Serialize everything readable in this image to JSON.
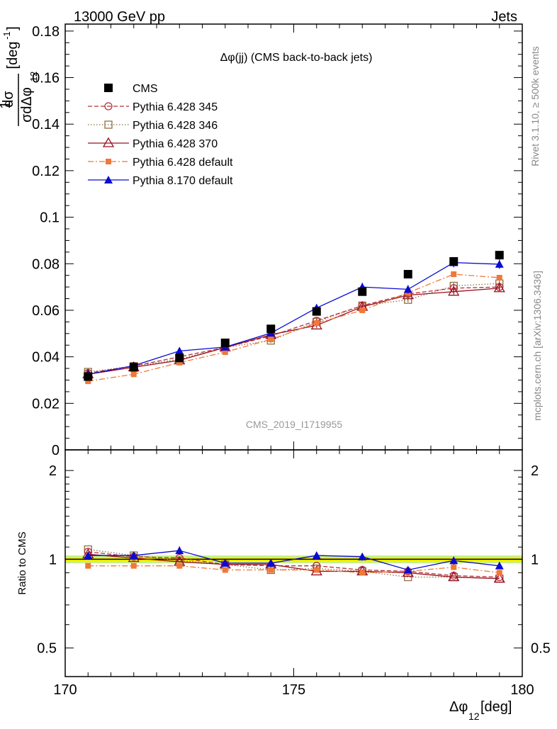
{
  "header": {
    "left": "13000 GeV pp",
    "right": "Jets"
  },
  "side_labels": {
    "rivet": "Rivet 3.1.10, ≥ 500k events",
    "mcplots": "mcplots.cern.ch [arXiv:1306.3436]"
  },
  "watermark": "CMS_2019_I1719955",
  "colors": {
    "cms": "#000000",
    "p345": "#b5303a",
    "p346": "#8e7040",
    "p370": "#9a1020",
    "pdef": "#f07838",
    "p8": "#0a0ad2",
    "band_inner": "#f2f200",
    "band_outer": "#c8f080"
  },
  "chart_data": [
    {
      "type": "scatter",
      "panel": "main",
      "title": "Δφ(jj) (CMS back-to-back jets)",
      "ylabel": {
        "prefix": "1",
        "num": "dσ",
        "den": "σdΔφ",
        "den_sub": "12",
        "unit": "[deg",
        "unit_sup": "-1",
        "unit_close": "]"
      },
      "xlim": [
        170,
        180
      ],
      "ylim": [
        0,
        0.183
      ],
      "yticks": [
        0,
        0.02,
        0.04,
        0.06,
        0.08,
        0.1,
        0.12,
        0.14,
        0.16,
        0.18
      ],
      "ytick_labels": [
        "0",
        "0.02",
        "0.04",
        "0.06",
        "0.08",
        "0.1",
        "0.12",
        "0.14",
        "0.16",
        "0.18"
      ],
      "x": [
        170.5,
        171.5,
        172.5,
        173.5,
        174.5,
        175.5,
        176.5,
        177.5,
        178.5,
        179.5
      ],
      "legend": "top-left",
      "series": [
        {
          "name": "CMS",
          "key": "cms",
          "style": "data",
          "values": [
            0.0315,
            0.0355,
            0.0395,
            0.046,
            0.052,
            0.0595,
            0.068,
            0.0755,
            0.081,
            0.0837
          ],
          "errors": [
            0.0005,
            0.0005,
            0.0006,
            0.0007,
            0.0008,
            0.0009,
            0.001,
            0.0011,
            0.0012,
            0.0012
          ]
        },
        {
          "name": "Pythia 6.428 345",
          "key": "p345",
          "style": "open-circle-dashed",
          "values": [
            0.033,
            0.036,
            0.04,
            0.044,
            0.049,
            0.0555,
            0.062,
            0.067,
            0.0695,
            0.07
          ],
          "errors": [
            0.0008,
            0.0008,
            0.0009,
            0.0009,
            0.001,
            0.001,
            0.0011,
            0.0011,
            0.0012,
            0.0012
          ]
        },
        {
          "name": "Pythia 6.428 346",
          "key": "p346",
          "style": "open-square-dotted",
          "values": [
            0.0335,
            0.036,
            0.039,
            0.044,
            0.047,
            0.055,
            0.062,
            0.0645,
            0.0705,
            0.0715
          ],
          "errors": [
            0.0008,
            0.0008,
            0.0009,
            0.0009,
            0.001,
            0.001,
            0.0011,
            0.0011,
            0.0012,
            0.0012
          ]
        },
        {
          "name": "Pythia 6.428 370",
          "key": "p370",
          "style": "open-triangle-solid",
          "values": [
            0.0325,
            0.0355,
            0.0385,
            0.044,
            0.0495,
            0.0535,
            0.0615,
            0.0665,
            0.068,
            0.0695
          ],
          "errors": [
            0.0008,
            0.0008,
            0.0009,
            0.0009,
            0.001,
            0.001,
            0.0011,
            0.0011,
            0.0012,
            0.0012
          ]
        },
        {
          "name": "Pythia 6.428 default",
          "key": "pdef",
          "style": "filled-square-dashdot",
          "values": [
            0.0295,
            0.0325,
            0.0375,
            0.042,
            0.0475,
            0.0545,
            0.06,
            0.0675,
            0.0755,
            0.074
          ],
          "errors": [
            0.0008,
            0.0008,
            0.0009,
            0.0009,
            0.001,
            0.001,
            0.0011,
            0.0011,
            0.0012,
            0.0012
          ]
        },
        {
          "name": "Pythia 8.170 default",
          "key": "p8",
          "style": "filled-triangle-solid",
          "values": [
            0.0325,
            0.0362,
            0.0425,
            0.0442,
            0.0502,
            0.061,
            0.07,
            0.069,
            0.0805,
            0.0798
          ],
          "errors": [
            0.0008,
            0.001,
            0.0012,
            0.001,
            0.0012,
            0.0015,
            0.0018,
            0.0018,
            0.002,
            0.002
          ]
        }
      ]
    },
    {
      "type": "scatter",
      "panel": "ratio",
      "ylabel": "Ratio to CMS",
      "xlabel": {
        "main": "Δφ",
        "sub": "12",
        "unit": " [deg]"
      },
      "scale": "log",
      "xlim": [
        170,
        180
      ],
      "ylim": [
        0.4,
        2.35
      ],
      "xticks": [
        170,
        175,
        180
      ],
      "xtick_labels": [
        "170",
        "175",
        "180"
      ],
      "yticks": [
        0.5,
        1,
        2
      ],
      "ytick_labels": [
        "0.5",
        "1",
        "2"
      ],
      "x": [
        170.5,
        171.5,
        172.5,
        173.5,
        174.5,
        175.5,
        176.5,
        177.5,
        178.5,
        179.5
      ],
      "series": [
        {
          "name": "Pythia 6.428 345",
          "key": "p345",
          "values": [
            1.06,
            1.02,
            1.01,
            0.96,
            0.95,
            0.95,
            0.92,
            0.91,
            0.88,
            0.87
          ]
        },
        {
          "name": "Pythia 6.428 346",
          "key": "p346",
          "values": [
            1.08,
            1.03,
            0.99,
            0.96,
            0.92,
            0.93,
            0.91,
            0.87,
            0.87,
            0.86
          ]
        },
        {
          "name": "Pythia 6.428 370",
          "key": "p370",
          "values": [
            1.04,
            1.01,
            0.98,
            0.96,
            0.96,
            0.91,
            0.91,
            0.9,
            0.87,
            0.86
          ]
        },
        {
          "name": "Pythia 6.428 default",
          "key": "pdef",
          "values": [
            0.95,
            0.95,
            0.95,
            0.92,
            0.92,
            0.92,
            0.9,
            0.91,
            0.94,
            0.9
          ]
        },
        {
          "name": "Pythia 8.170 default",
          "key": "p8",
          "values": [
            1.03,
            1.03,
            1.07,
            0.97,
            0.97,
            1.03,
            1.02,
            0.92,
            0.99,
            0.95
          ],
          "errors": [
            0.025,
            0.03,
            0.035,
            0.025,
            0.03,
            0.03,
            0.03,
            0.025,
            0.03,
            0.025
          ]
        }
      ]
    }
  ]
}
